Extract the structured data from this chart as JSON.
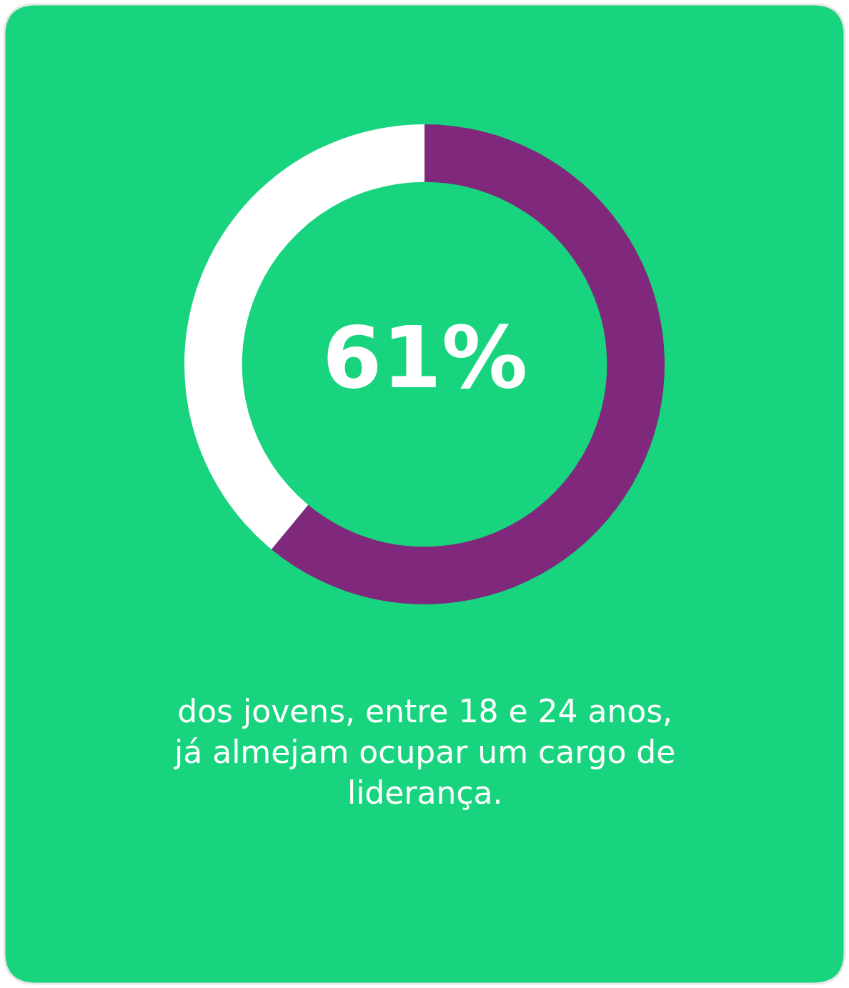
{
  "chart_data": {
    "type": "donut",
    "categories": [
      null,
      null
    ],
    "values": [
      61,
      39
    ],
    "colors": [
      "#80287c",
      "#ffffff"
    ],
    "value_labels": [
      "61%",
      null
    ],
    "annotations": [
      "dos jovens, entre 18 e 24 anos, já almejam ocupar um cargo de liderança."
    ],
    "legend": false
  }
}
